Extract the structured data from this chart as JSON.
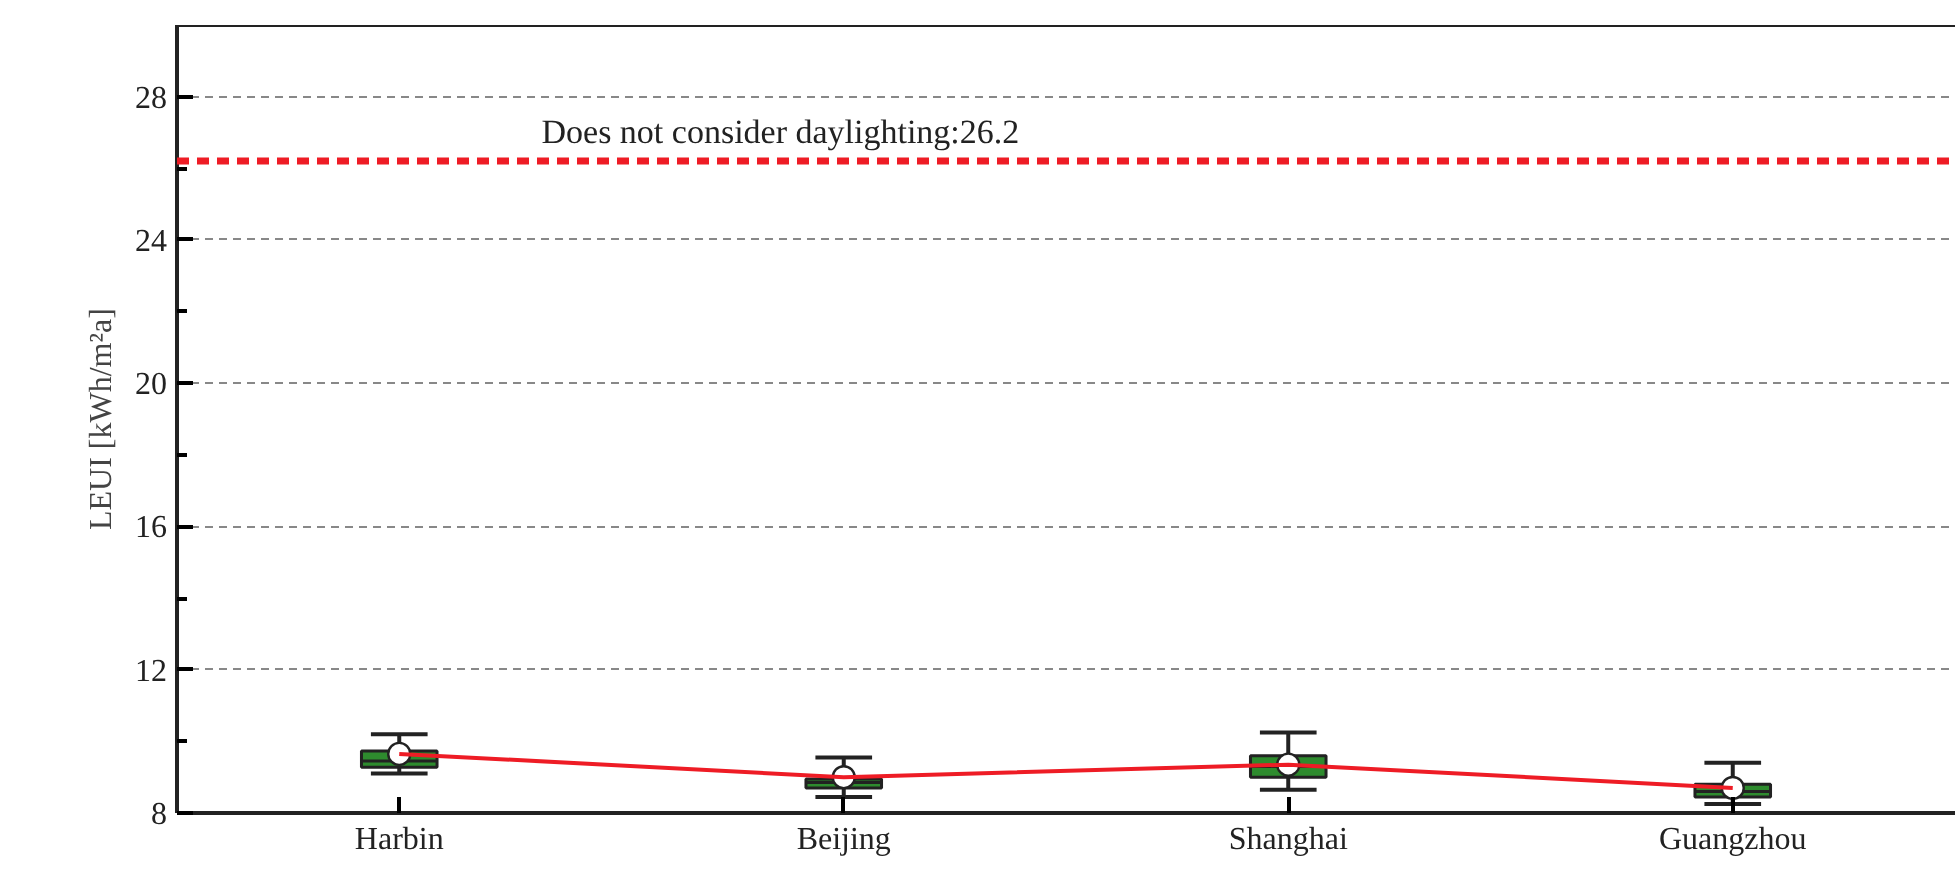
{
  "chart_data": {
    "type": "box",
    "ylabel": "LEUI [kWh/m²a]",
    "categories": [
      "Harbin",
      "Beijing",
      "Shanghai",
      "Guangzhou"
    ],
    "boxes": [
      {
        "low": 9.1,
        "q1": 9.28,
        "median": 9.45,
        "q3": 9.73,
        "high": 10.2,
        "mean": 9.65
      },
      {
        "low": 8.45,
        "q1": 8.7,
        "median": 8.85,
        "q3": 8.95,
        "high": 9.55,
        "mean": 9.0
      },
      {
        "low": 8.65,
        "q1": 9.0,
        "median": 9.3,
        "q3": 9.6,
        "high": 10.25,
        "mean": 9.35
      },
      {
        "low": 8.25,
        "q1": 8.45,
        "median": 8.6,
        "q3": 8.8,
        "high": 9.4,
        "mean": 8.7
      }
    ],
    "color": "#2e8b2e",
    "series": [
      {
        "type": "line",
        "color": "#ee1c25",
        "values": [
          9.65,
          9.0,
          9.35,
          8.7
        ]
      }
    ],
    "ylim": [
      8,
      30
    ],
    "yticks": [
      8,
      12,
      16,
      20,
      24,
      28
    ],
    "grid": "y",
    "ref_lines": [
      {
        "axis": "y",
        "value": 26.2,
        "label": "Does not consider daylighting:26.2",
        "color": "#ee1c25",
        "line_style": "dashed"
      }
    ]
  }
}
